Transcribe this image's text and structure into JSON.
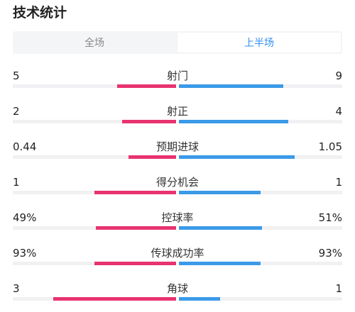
{
  "header": {
    "title": "技术统计"
  },
  "tabs": [
    {
      "label": "全场",
      "active": false
    },
    {
      "label": "上半场",
      "active": true
    }
  ],
  "colors": {
    "left_bar": "#e8336f",
    "right_bar": "#3b9ae8",
    "active_tab": "#2f8ef0"
  },
  "stats": [
    {
      "name": "射门",
      "left": "5",
      "right": "9",
      "left_fill": 0.36,
      "right_fill": 0.64
    },
    {
      "name": "射正",
      "left": "2",
      "right": "4",
      "left_fill": 0.33,
      "right_fill": 0.67
    },
    {
      "name": "预期进球",
      "left": "0.44",
      "right": "1.05",
      "left_fill": 0.29,
      "right_fill": 0.71
    },
    {
      "name": "得分机会",
      "left": "1",
      "right": "1",
      "left_fill": 0.5,
      "right_fill": 0.5
    },
    {
      "name": "控球率",
      "left": "49%",
      "right": "51%",
      "left_fill": 0.49,
      "right_fill": 0.51
    },
    {
      "name": "传球成功率",
      "left": "93%",
      "right": "93%",
      "left_fill": 0.5,
      "right_fill": 0.5
    },
    {
      "name": "角球",
      "left": "3",
      "right": "1",
      "left_fill": 0.75,
      "right_fill": 0.25
    }
  ]
}
